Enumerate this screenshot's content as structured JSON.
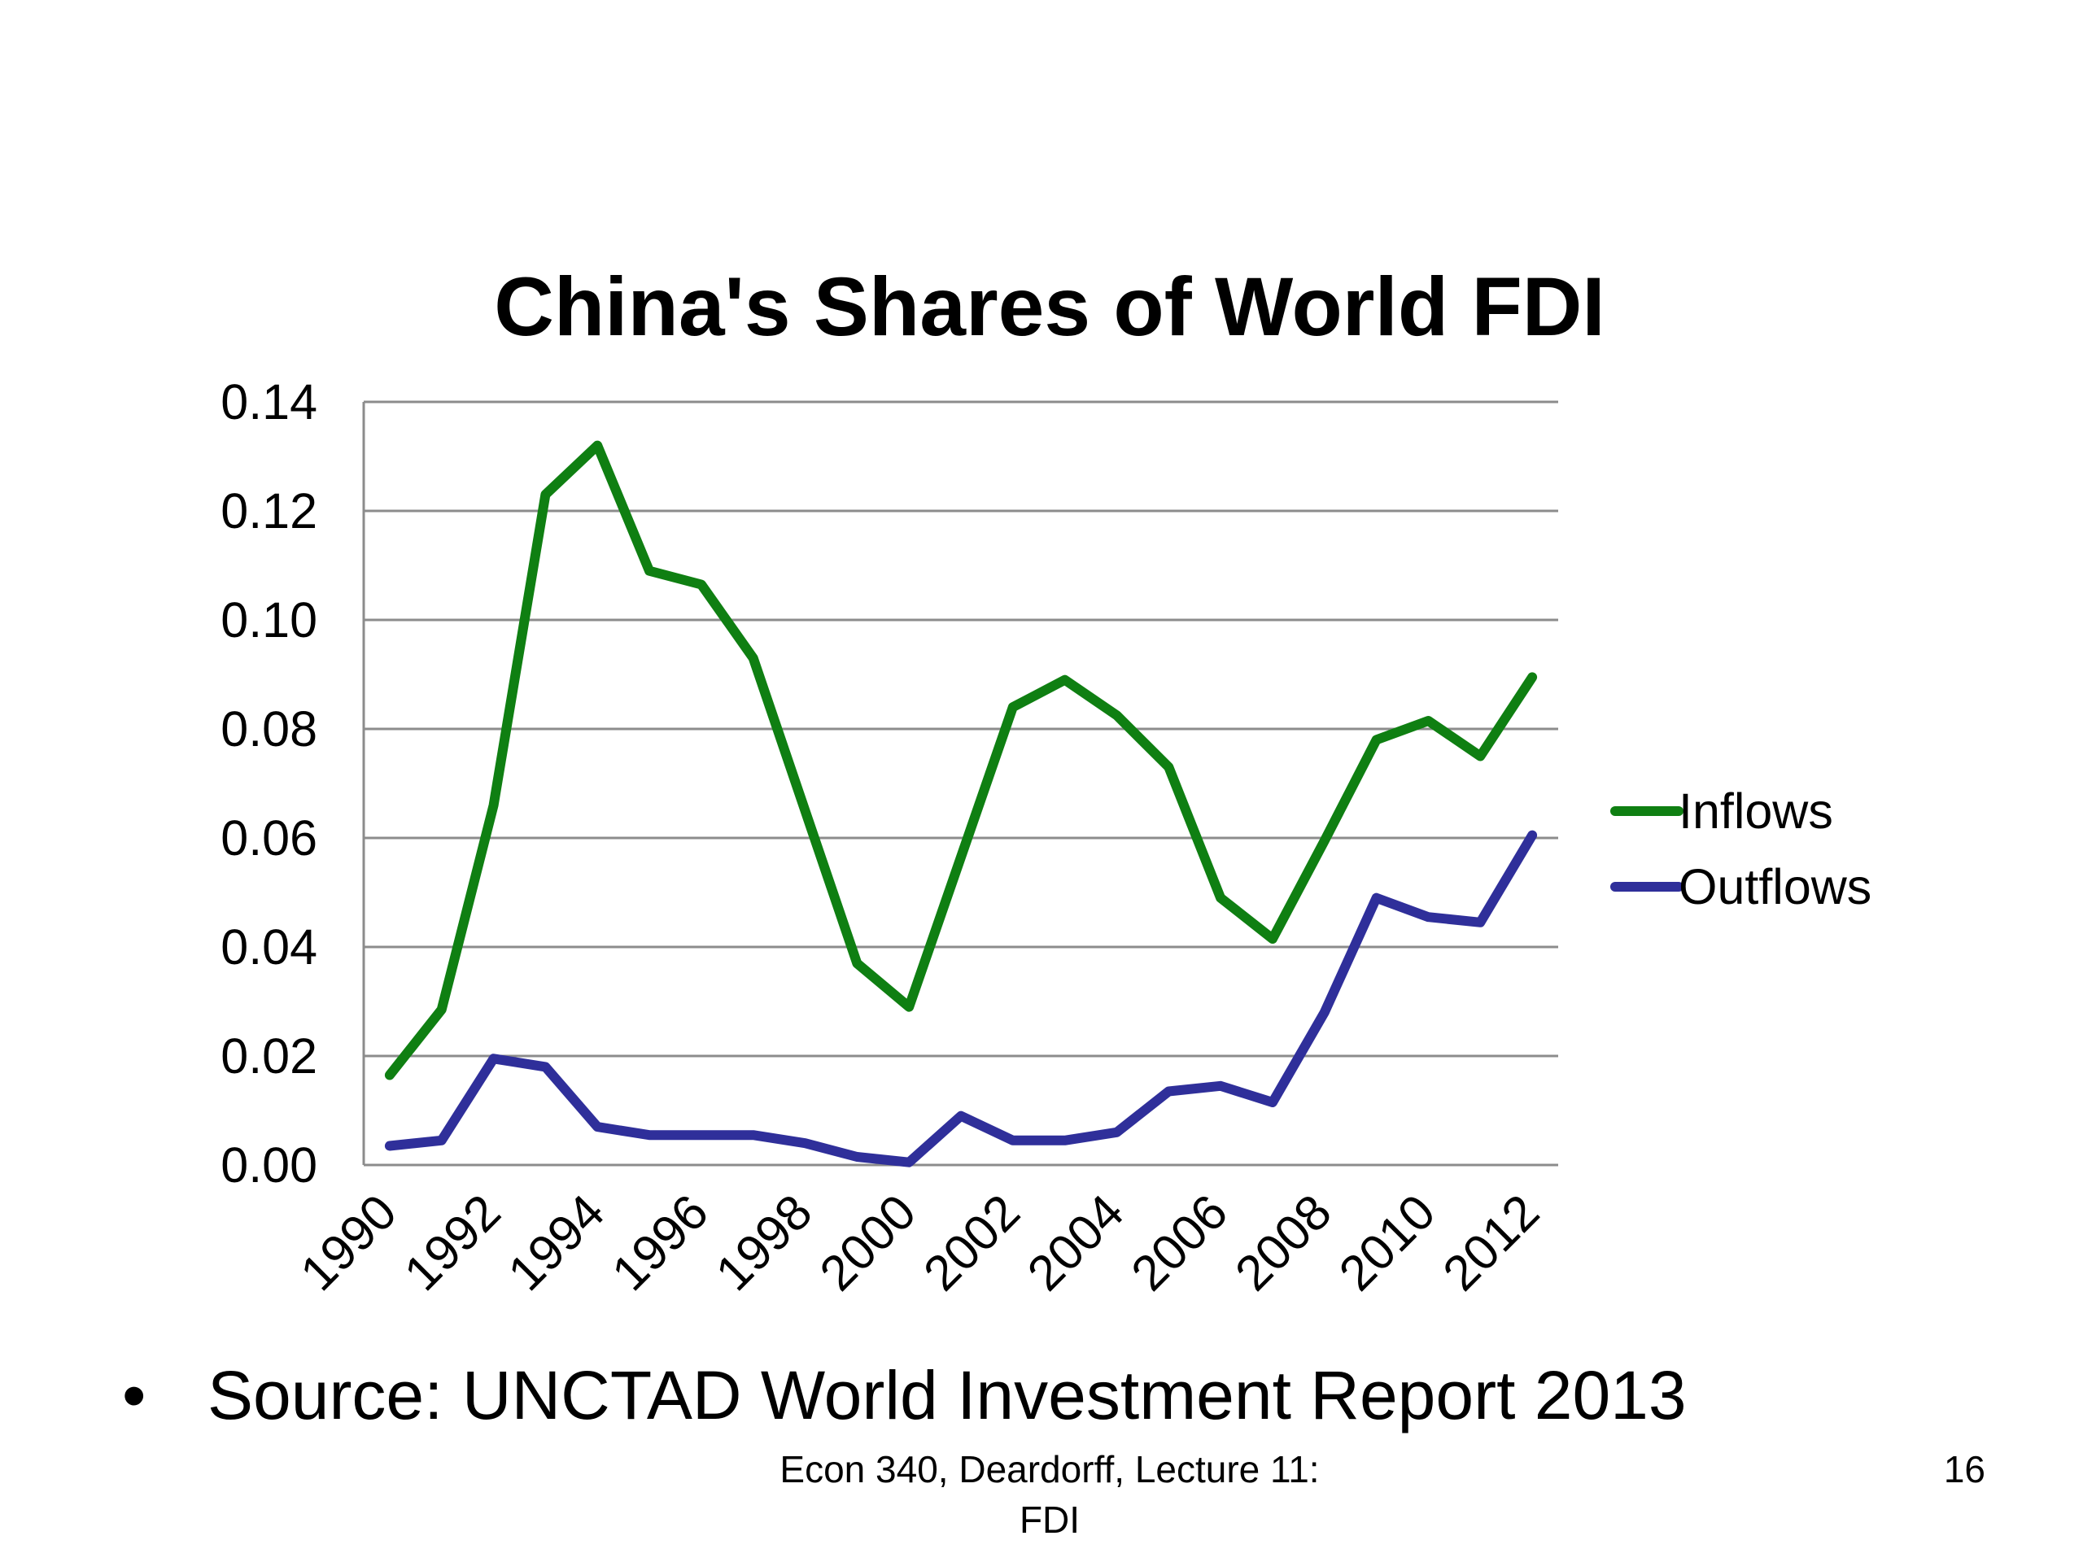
{
  "chart_data": {
    "type": "line",
    "title": "China's Shares of World FDI",
    "xlabel": "",
    "ylabel": "",
    "ylim": [
      0,
      0.14
    ],
    "yticks": [
      "0.00",
      "0.02",
      "0.04",
      "0.06",
      "0.08",
      "0.10",
      "0.12",
      "0.14"
    ],
    "xtick_labels": [
      "1990",
      "1992",
      "1994",
      "1996",
      "1998",
      "2000",
      "2002",
      "2004",
      "2006",
      "2008",
      "2010",
      "2012"
    ],
    "x": [
      1990,
      1991,
      1992,
      1993,
      1994,
      1995,
      1996,
      1997,
      1998,
      1999,
      2000,
      2001,
      2002,
      2003,
      2004,
      2005,
      2006,
      2007,
      2008,
      2009,
      2010,
      2011,
      2012
    ],
    "grid": "horizontal",
    "legend_position": "right",
    "series": [
      {
        "name": "Inflows",
        "color": "#0f7f12",
        "values": [
          0.0165,
          0.0285,
          0.066,
          0.123,
          0.132,
          0.109,
          0.1065,
          0.093,
          0.065,
          0.037,
          0.029,
          0.0565,
          0.084,
          0.089,
          0.0825,
          0.073,
          0.049,
          0.0415,
          0.0595,
          0.078,
          0.0815,
          0.075,
          0.0895
        ]
      },
      {
        "name": "Outflows",
        "color": "#2f2f9a",
        "values": [
          0.0035,
          0.0045,
          0.0195,
          0.018,
          0.007,
          0.0055,
          0.0055,
          0.0055,
          0.004,
          0.0015,
          0.0005,
          0.009,
          0.0045,
          0.0045,
          0.006,
          0.0135,
          0.0145,
          0.0115,
          0.028,
          0.049,
          0.0455,
          0.0445,
          0.0605
        ]
      }
    ]
  },
  "slide": {
    "bullet": "•",
    "source_text": "Source:  UNCTAD World Investment Report 2013",
    "footer_line1": "Econ 340, Deardorff, Lecture 11:",
    "footer_line2": "FDI",
    "page_number": "16"
  }
}
